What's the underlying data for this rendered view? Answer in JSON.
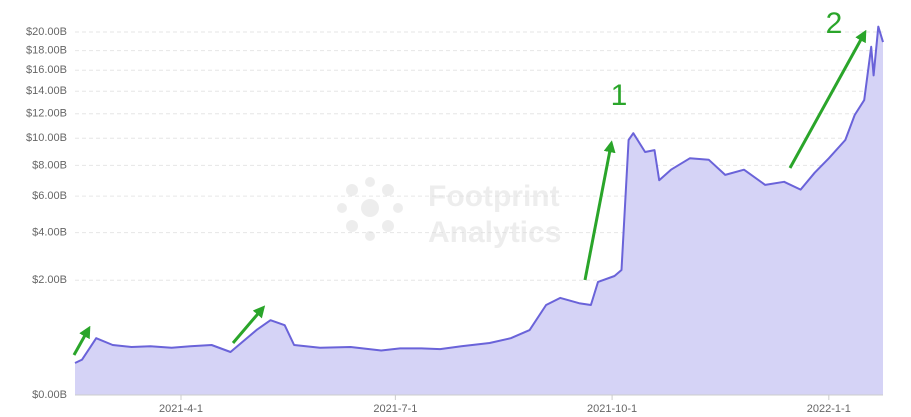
{
  "chart_data": {
    "type": "area",
    "scale": "sqrt",
    "x": [
      "2021-2-15",
      "2021-2-18",
      "2021-2-24",
      "2021-3-3",
      "2021-3-11",
      "2021-3-19",
      "2021-3-28",
      "2021-4-5",
      "2021-4-14",
      "2021-4-22",
      "2021-5-3",
      "2021-5-9",
      "2021-5-15",
      "2021-5-19",
      "2021-5-30",
      "2021-6-12",
      "2021-6-25",
      "2021-7-3",
      "2021-7-12",
      "2021-7-20",
      "2021-7-29",
      "2021-8-10",
      "2021-8-19",
      "2021-8-27",
      "2021-9-3",
      "2021-9-9",
      "2021-9-17",
      "2021-9-22",
      "2021-9-25",
      "2021-10-2",
      "2021-10-5",
      "2021-10-8",
      "2021-10-10",
      "2021-10-15",
      "2021-10-19",
      "2021-10-21",
      "2021-10-26",
      "2021-11-3",
      "2021-11-11",
      "2021-11-18",
      "2021-11-26",
      "2021-12-5",
      "2021-12-13",
      "2021-12-20",
      "2021-12-26",
      "2022-1-1",
      "2022-1-8",
      "2022-1-12",
      "2022-1-16",
      "2022-1-19",
      "2022-1-20",
      "2022-1-22",
      "2022-1-24"
    ],
    "values": [
      0.155,
      0.19,
      0.49,
      0.38,
      0.35,
      0.36,
      0.34,
      0.36,
      0.38,
      0.28,
      0.64,
      0.85,
      0.74,
      0.38,
      0.34,
      0.35,
      0.3,
      0.33,
      0.33,
      0.32,
      0.36,
      0.41,
      0.49,
      0.64,
      1.23,
      1.43,
      1.28,
      1.23,
      1.94,
      2.15,
      2.37,
      9.87,
      10.4,
      8.96,
      9.1,
      7.0,
      7.7,
      8.5,
      8.4,
      7.35,
      7.7,
      6.7,
      6.9,
      6.4,
      7.5,
      8.5,
      9.87,
      11.9,
      13.2,
      18.4,
      15.5,
      20.6,
      18.9
    ],
    "line_color": "#6a63d9",
    "fill_color": "#d5d3f6",
    "xlim": [
      "2021-2-15",
      "2022-1-24"
    ],
    "xticks": [
      "2021-4-1",
      "2021-7-1",
      "2021-10-1",
      "2022-1-1"
    ],
    "ylim": [
      0,
      21
    ],
    "yticks": [
      {
        "value": 0,
        "label": "$0.00B"
      },
      {
        "value": 2,
        "label": "$2.00B"
      },
      {
        "value": 4,
        "label": "$4.00B"
      },
      {
        "value": 6,
        "label": "$6.00B"
      },
      {
        "value": 8,
        "label": "$8.00B"
      },
      {
        "value": 10,
        "label": "$10.00B"
      },
      {
        "value": 12,
        "label": "$12.00B"
      },
      {
        "value": 14,
        "label": "$14.00B"
      },
      {
        "value": 16,
        "label": "$16.00B"
      },
      {
        "value": 18,
        "label": "$18.00B"
      },
      {
        "value": 20,
        "label": "$20.00B"
      }
    ],
    "grid": true,
    "annotations": [
      "1",
      "2"
    ],
    "watermark": [
      "Footprint",
      "Analytics"
    ]
  }
}
